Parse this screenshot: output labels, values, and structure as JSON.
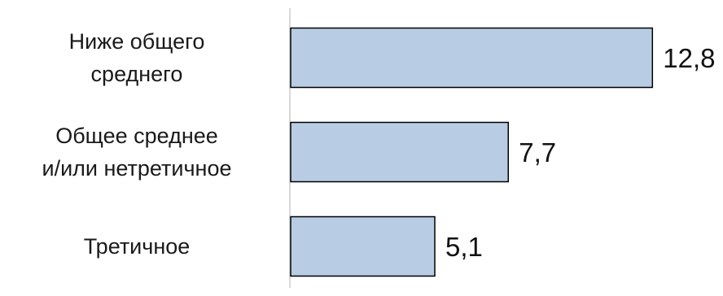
{
  "chart_data": {
    "type": "bar",
    "orientation": "horizontal",
    "categories": [
      [
        "Ниже общего",
        "среднего"
      ],
      [
        "Общее среднее",
        "и/или нетретичное"
      ],
      [
        "Третичное"
      ]
    ],
    "values": [
      12.8,
      7.7,
      5.1
    ],
    "value_labels": [
      "12,8",
      "7,7",
      "5,1"
    ],
    "xlim": [
      0,
      14.75
    ],
    "grid": false,
    "legend": "none",
    "bar_color": "#b8cce4",
    "bar_border_color": "#000000"
  }
}
